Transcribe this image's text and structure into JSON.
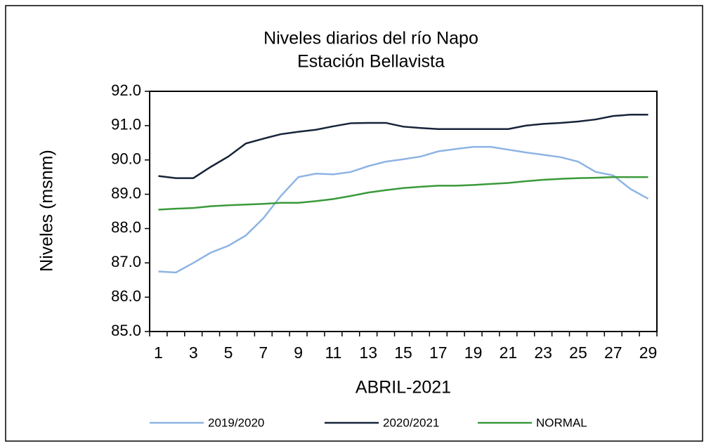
{
  "chart_data": {
    "type": "line",
    "title": "Niveles  diarios del río Napo",
    "subtitle": "Estación  Bellavista",
    "y_label": "Niveles  (msnm)",
    "x_label": "ABRIL-2021",
    "categories": [
      "1",
      null,
      "3",
      null,
      "5",
      null,
      "7",
      null,
      "9",
      null,
      "11",
      null,
      "13",
      null,
      "15",
      null,
      "17",
      null,
      "19",
      null,
      "21",
      null,
      "23",
      null,
      "25",
      null,
      "27",
      null,
      "29"
    ],
    "series": [
      {
        "name": "2019/2020",
        "color": "#8eb4e3",
        "values": [
          86.75,
          86.72,
          87.0,
          87.3,
          87.5,
          87.8,
          88.3,
          88.95,
          89.5,
          89.6,
          89.58,
          89.65,
          89.82,
          89.95,
          90.02,
          90.1,
          90.25,
          90.32,
          90.38,
          90.38,
          90.3,
          90.22,
          90.15,
          90.08,
          89.95,
          89.65,
          89.55,
          89.15,
          88.87
        ]
      },
      {
        "name": "2020/2021",
        "color": "#17243a",
        "values": [
          89.53,
          89.47,
          89.47,
          89.8,
          90.1,
          90.48,
          90.62,
          90.75,
          90.82,
          90.88,
          90.98,
          91.07,
          91.08,
          91.08,
          90.97,
          90.93,
          90.9,
          90.9,
          90.9,
          90.9,
          90.9,
          91.0,
          91.05,
          91.08,
          91.12,
          91.18,
          91.28,
          91.32,
          91.32
        ]
      },
      {
        "name": "NORMAL",
        "color": "#3a9a3a",
        "values": [
          88.55,
          88.58,
          88.6,
          88.65,
          88.68,
          88.7,
          88.72,
          88.75,
          88.75,
          88.8,
          88.86,
          88.95,
          89.05,
          89.12,
          89.18,
          89.22,
          89.25,
          89.25,
          89.27,
          89.3,
          89.33,
          89.38,
          89.42,
          89.45,
          89.47,
          89.48,
          89.5,
          89.5,
          89.5
        ]
      }
    ],
    "ylim": [
      85,
      92
    ],
    "yticks": [
      {
        "value": 85,
        "label": "85.0"
      },
      {
        "value": 86,
        "label": "86.0"
      },
      {
        "value": 87,
        "label": "87.0"
      },
      {
        "value": 88,
        "label": "88.0"
      },
      {
        "value": 89,
        "label": "89.0"
      },
      {
        "value": 90,
        "label": "90.0"
      },
      {
        "value": 91,
        "label": "91.0"
      },
      {
        "value": 92,
        "label": "92.0"
      }
    ],
    "grid": false,
    "legend": "bottom"
  }
}
